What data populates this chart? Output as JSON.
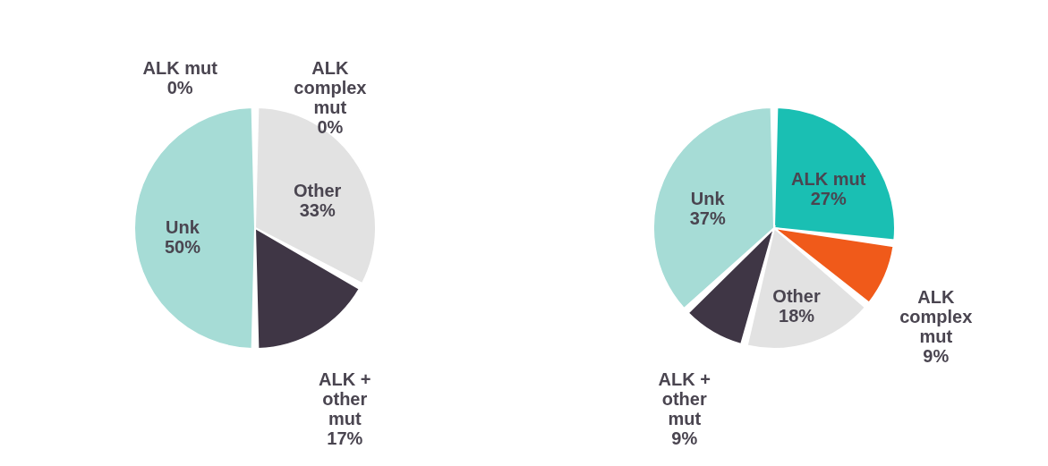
{
  "chart_data": [
    {
      "type": "pie",
      "categories": [
        "ALK mut",
        "ALK complex mut",
        "Other",
        "ALK + other mut",
        "Unk"
      ],
      "values": [
        0,
        0,
        33,
        17,
        50
      ],
      "colors": [
        "#1abfb3",
        "#f05a1a",
        "#e2e2e2",
        "#3f3645",
        "#a6dcd6"
      ],
      "value_labels": [
        "0%",
        "0%",
        "33%",
        "17%",
        "50%"
      ]
    },
    {
      "type": "pie",
      "categories": [
        "ALK mut",
        "ALK complex mut",
        "Other",
        "ALK + other mut",
        "Unk"
      ],
      "values": [
        27,
        9,
        18,
        9,
        37
      ],
      "colors": [
        "#1abfb3",
        "#f05a1a",
        "#e2e2e2",
        "#3f3645",
        "#a6dcd6"
      ],
      "value_labels": [
        "27%",
        "9%",
        "18%",
        "9%",
        "37%"
      ]
    }
  ]
}
